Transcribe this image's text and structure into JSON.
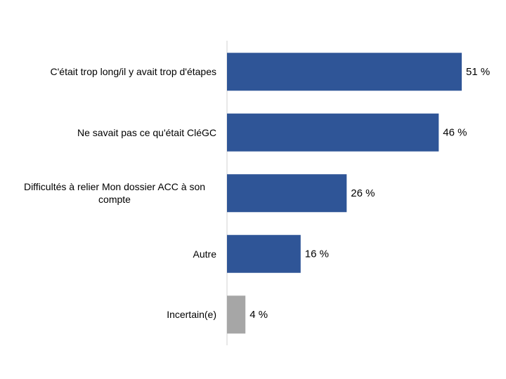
{
  "chart_data": {
    "type": "hbar",
    "categories": [
      "C'était trop long/il y avait trop d'étapes",
      "Ne savait pas ce qu'était CléGC",
      "Difficultés à relier Mon dossier ACC à son compte",
      "Autre",
      "Incertain(e)"
    ],
    "values": [
      51,
      46,
      26,
      16,
      4
    ],
    "value_labels": [
      "51 %",
      "46 %",
      "26 %",
      "16 %",
      "4 %"
    ],
    "colors": [
      "#2f5597",
      "#2f5597",
      "#2f5597",
      "#2f5597",
      "#a6a6a6"
    ]
  }
}
